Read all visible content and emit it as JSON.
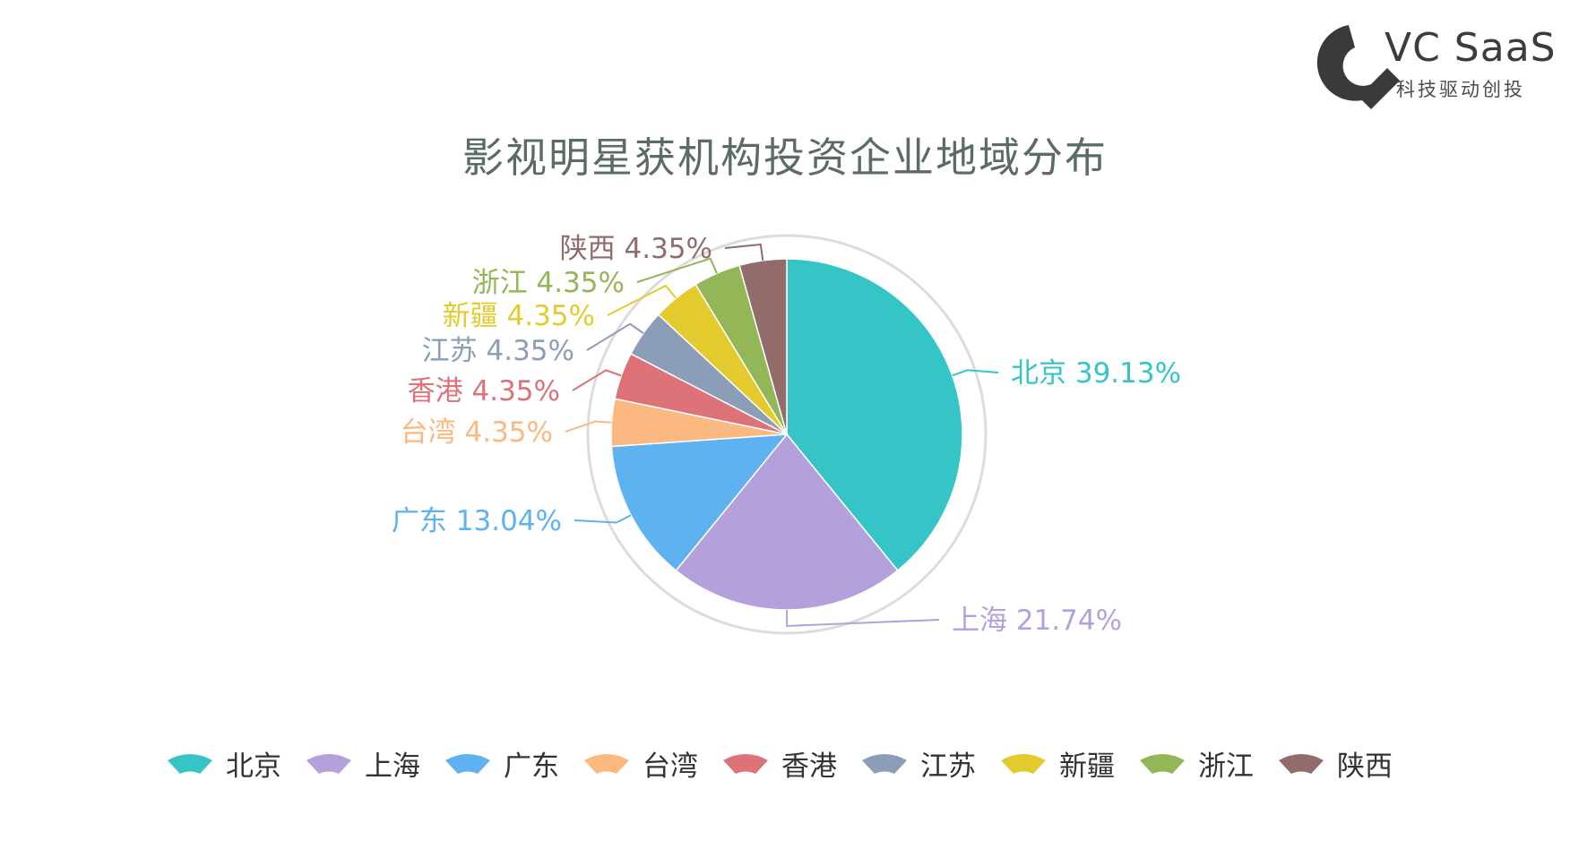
{
  "logo": {
    "name": "VC SaaS",
    "tagline": "科技驱动创投",
    "color": "#383b3a"
  },
  "chart_data": {
    "type": "pie",
    "title": "影视明星获机构投资企业地域分布",
    "categories": [
      "北京",
      "上海",
      "广东",
      "台湾",
      "香港",
      "江苏",
      "新疆",
      "浙江",
      "陕西"
    ],
    "values": [
      39.13,
      21.74,
      13.04,
      4.35,
      4.35,
      4.35,
      4.35,
      4.35,
      4.35
    ],
    "value_labels": [
      "39.13%",
      "21.74%",
      "13.04%",
      "4.35%",
      "4.35%",
      "4.35%",
      "4.35%",
      "4.35%",
      "4.35%"
    ],
    "colors": [
      "#36c5c7",
      "#b4a1dc",
      "#5eb2ef",
      "#fbb880",
      "#dd7278",
      "#8c9db8",
      "#e3cb2e",
      "#93b656",
      "#926b6b"
    ],
    "start_angle": "12 o'clock",
    "direction": "clockwise",
    "outer_ring": true,
    "legend_position": "bottom"
  }
}
